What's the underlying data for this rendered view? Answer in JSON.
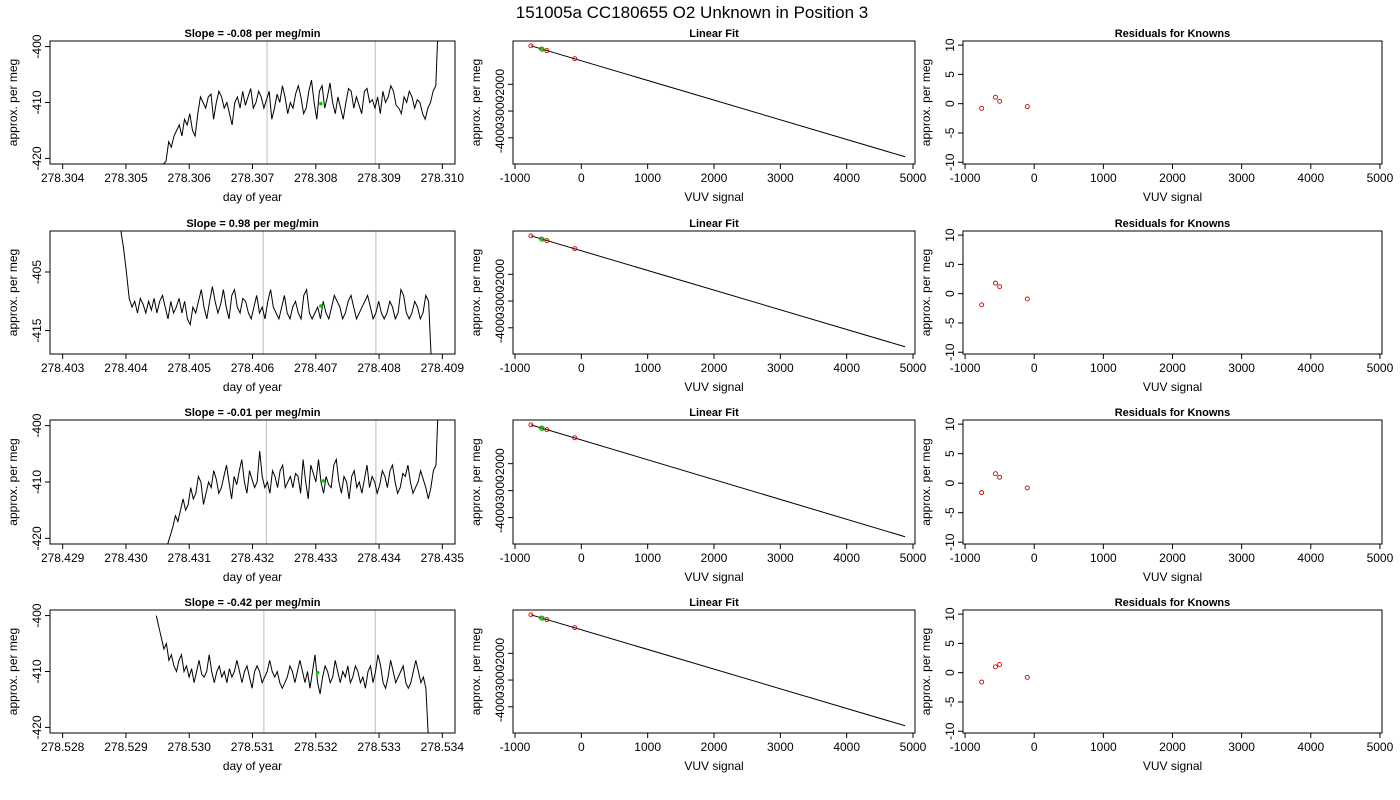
{
  "figure_title": "151005a     CC180655   O2 Unknown in Position  3",
  "colors": {
    "trace": "#000000",
    "vline": "#bdbdbd",
    "highlight": "#00cc00",
    "points": "#cc0000",
    "fit_line": "#000000"
  },
  "chart_data": [
    {
      "type": "line",
      "title": "Slope =  -0.08  per meg/min",
      "xlabel": "day of year",
      "ylabel": "approx. per meg",
      "x_ticks": [
        "278.304",
        "278.305",
        "278.306",
        "278.307",
        "278.308",
        "278.309",
        "278.310"
      ],
      "y_ticks": [
        "-400",
        "-410",
        "-420"
      ],
      "xlim": [
        278.3038,
        278.3102
      ],
      "ylim": [
        -421,
        -399
      ],
      "vlines": [
        278.30723,
        278.30894
      ],
      "highlight": {
        "x": 278.30808,
        "y": -410.2
      },
      "series": [
        {
          "start": 278.30555,
          "end": 278.30998,
          "points": [
            -424,
            -421,
            -420.5,
            -417,
            -418,
            -416,
            -415,
            -414,
            -416,
            -413,
            -414,
            -412,
            -415,
            -416,
            -412,
            -409,
            -410,
            -411,
            -409,
            -408.5,
            -413,
            -410,
            -408,
            -409,
            -411,
            -410,
            -412,
            -414,
            -410,
            -409,
            -411,
            -408,
            -410.5,
            -409,
            -407.5,
            -411,
            -410,
            -408,
            -409,
            -411,
            -409.5,
            -408,
            -413,
            -411,
            -408.5,
            -410,
            -407,
            -409,
            -412,
            -410,
            -411,
            -408.5,
            -407,
            -409,
            -412,
            -411,
            -408,
            -406,
            -410,
            -413,
            -408,
            -407,
            -411,
            -409,
            -406.5,
            -410,
            -412,
            -409,
            -411,
            -413,
            -410,
            -407.5,
            -408,
            -411,
            -409,
            -410.5,
            -412,
            -408,
            -407.5,
            -410,
            -409.5,
            -411,
            -409,
            -412,
            -408,
            -410,
            -409,
            -407,
            -408,
            -410.5,
            -411,
            -412,
            -409,
            -410,
            -408,
            -409,
            -411,
            -409.5,
            -410,
            -412,
            -413,
            -411,
            -410,
            -408,
            -407,
            -395,
            -380
          ]
        }
      ]
    },
    {
      "type": "scatter",
      "title": "Linear Fit",
      "xlabel": "VUV signal",
      "ylabel": "approx. per meg",
      "x_ticks": [
        "-1000",
        "0",
        "1000",
        "2000",
        "3000",
        "4000",
        "5000"
      ],
      "y_ticks": [
        "-2000",
        "-3000",
        "-4000"
      ],
      "xlim": [
        -1030,
        5030
      ],
      "ylim": [
        -4980,
        -380
      ],
      "fit_line": {
        "x": [
          -760,
          4880
        ],
        "y": [
          -560,
          -4710
        ]
      },
      "points": {
        "x": [
          -760,
          -600,
          -520,
          -100
        ],
        "y": [
          -560,
          -680,
          -740,
          -1040
        ]
      },
      "highlight": {
        "x": -590,
        "y": -690
      }
    },
    {
      "type": "scatter",
      "title": "Residuals for Knowns",
      "xlabel": "VUV signal",
      "ylabel": "approx. per meg",
      "x_ticks": [
        "-1000",
        "0",
        "1000",
        "2000",
        "3000",
        "4000",
        "5000"
      ],
      "y_ticks": [
        "10",
        "5",
        "0",
        "-5",
        "-10"
      ],
      "xlim": [
        -1030,
        5030
      ],
      "ylim": [
        -10.3,
        10.7
      ],
      "points": {
        "x": [
          -760,
          -560,
          -500,
          -100
        ],
        "y": [
          -0.8,
          1.1,
          0.4,
          -0.5
        ]
      }
    },
    {
      "type": "line",
      "title": "Slope =  0.98  per meg/min",
      "xlabel": "day of year",
      "ylabel": "approx. per meg",
      "x_ticks": [
        "278.403",
        "278.404",
        "278.405",
        "278.406",
        "278.407",
        "278.408",
        "278.409"
      ],
      "y_ticks": [
        "-405",
        "-415"
      ],
      "xlim": [
        278.4028,
        278.4092
      ],
      "ylim": [
        -419,
        -398
      ],
      "vlines": [
        278.40617,
        278.40795
      ],
      "highlight": {
        "x": 278.40708,
        "y": -410.8
      },
      "series": [
        {
          "start": 278.40392,
          "end": 278.40887,
          "points": [
            -398,
            -401,
            -405,
            -409.5,
            -411,
            -410,
            -412,
            -409.5,
            -410.5,
            -412,
            -410,
            -411.5,
            -409.5,
            -412,
            -410,
            -409,
            -411,
            -413,
            -410,
            -412,
            -411,
            -409.5,
            -412,
            -410,
            -413,
            -414,
            -411,
            -412,
            -410,
            -408,
            -411,
            -413,
            -410,
            -407.5,
            -410,
            -412,
            -410.5,
            -408,
            -411,
            -413,
            -409,
            -408,
            -411,
            -412,
            -409.5,
            -410,
            -412,
            -413,
            -411,
            -409,
            -412,
            -411,
            -413,
            -410,
            -408,
            -411,
            -412,
            -413,
            -411,
            -409,
            -412,
            -413,
            -411,
            -410,
            -412,
            -413,
            -409,
            -408,
            -412,
            -413,
            -412,
            -411,
            -413,
            -410,
            -412,
            -413,
            -411,
            -409,
            -410,
            -411,
            -413,
            -412,
            -410,
            -409,
            -411,
            -413,
            -412,
            -411,
            -410,
            -409,
            -411,
            -413,
            -412,
            -410,
            -412,
            -413,
            -412,
            -410,
            -411,
            -413,
            -412,
            -408,
            -409,
            -412,
            -413,
            -412,
            -410,
            -411,
            -413,
            -412,
            -409,
            -410,
            -420,
            -425
          ]
        }
      ]
    },
    {
      "type": "scatter",
      "title": "Linear Fit",
      "xlabel": "VUV signal",
      "ylabel": "approx. per meg",
      "x_ticks": [
        "-1000",
        "0",
        "1000",
        "2000",
        "3000",
        "4000",
        "5000"
      ],
      "y_ticks": [
        "-2000",
        "-3000",
        "-4000"
      ],
      "xlim": [
        -1030,
        5030
      ],
      "ylim": [
        -4980,
        -380
      ],
      "fit_line": {
        "x": [
          -760,
          4880
        ],
        "y": [
          -560,
          -4710
        ]
      },
      "points": {
        "x": [
          -760,
          -600,
          -520,
          -100
        ],
        "y": [
          -560,
          -680,
          -740,
          -1040
        ]
      },
      "highlight": {
        "x": -590,
        "y": -690
      }
    },
    {
      "type": "scatter",
      "title": "Residuals for Knowns",
      "xlabel": "VUV signal",
      "ylabel": "approx. per meg",
      "x_ticks": [
        "-1000",
        "0",
        "1000",
        "2000",
        "3000",
        "4000",
        "5000"
      ],
      "y_ticks": [
        "10",
        "5",
        "0",
        "-5",
        "-10"
      ],
      "xlim": [
        -1030,
        5030
      ],
      "ylim": [
        -10.3,
        10.7
      ],
      "points": {
        "x": [
          -760,
          -560,
          -500,
          -100
        ],
        "y": [
          -1.9,
          1.8,
          1.2,
          -0.9
        ]
      }
    },
    {
      "type": "line",
      "title": "Slope =  -0.01  per meg/min",
      "xlabel": "day of year",
      "ylabel": "approx. per meg",
      "x_ticks": [
        "278.429",
        "278.430",
        "278.431",
        "278.432",
        "278.433",
        "278.434",
        "278.435"
      ],
      "y_ticks": [
        "-400",
        "-410",
        "-420"
      ],
      "xlim": [
        278.4288,
        278.4352
      ],
      "ylim": [
        -421,
        -399
      ],
      "vlines": [
        278.43222,
        278.43395
      ],
      "highlight": {
        "x": 278.43312,
        "y": -409.8
      },
      "series": [
        {
          "start": 278.43062,
          "end": 278.43498,
          "points": [
            -425,
            -421,
            -419.5,
            -418,
            -416,
            -417,
            -415,
            -413,
            -415,
            -414,
            -411,
            -413,
            -412,
            -409,
            -410,
            -414,
            -412,
            -410,
            -411,
            -408,
            -409.5,
            -412,
            -411,
            -409,
            -407,
            -410,
            -413,
            -409,
            -410.5,
            -408,
            -406,
            -410,
            -412,
            -408,
            -409.5,
            -411,
            -410,
            -404.5,
            -409,
            -411,
            -410,
            -412,
            -408,
            -409,
            -411,
            -408,
            -407,
            -411,
            -410,
            -409,
            -411,
            -408.5,
            -409,
            -412,
            -406,
            -410,
            -413,
            -407,
            -408.5,
            -410,
            -406,
            -410,
            -412,
            -409,
            -410.5,
            -411,
            -407,
            -406,
            -410,
            -412,
            -409,
            -410,
            -413,
            -409,
            -408,
            -411,
            -410,
            -412,
            -409.5,
            -407,
            -411,
            -409,
            -410,
            -412,
            -410.5,
            -408,
            -409,
            -411,
            -408,
            -407,
            -410,
            -412,
            -411,
            -408.5,
            -409,
            -407,
            -410,
            -412,
            -411,
            -410,
            -408,
            -409.5,
            -411,
            -413,
            -411,
            -408,
            -407,
            -395,
            -380
          ]
        }
      ]
    },
    {
      "type": "scatter",
      "title": "Linear Fit",
      "xlabel": "VUV signal",
      "ylabel": "approx. per meg",
      "x_ticks": [
        "-1000",
        "0",
        "1000",
        "2000",
        "3000",
        "4000",
        "5000"
      ],
      "y_ticks": [
        "-2000",
        "-3000",
        "-4000"
      ],
      "xlim": [
        -1030,
        5030
      ],
      "ylim": [
        -4980,
        -380
      ],
      "fit_line": {
        "x": [
          -760,
          4880
        ],
        "y": [
          -560,
          -4710
        ]
      },
      "points": {
        "x": [
          -760,
          -600,
          -520,
          -100
        ],
        "y": [
          -560,
          -680,
          -740,
          -1040
        ]
      },
      "highlight": {
        "x": -590,
        "y": -690
      }
    },
    {
      "type": "scatter",
      "title": "Residuals for Knowns",
      "xlabel": "VUV signal",
      "ylabel": "approx. per meg",
      "x_ticks": [
        "-1000",
        "0",
        "1000",
        "2000",
        "3000",
        "4000",
        "5000"
      ],
      "y_ticks": [
        "10",
        "5",
        "0",
        "-5",
        "-10"
      ],
      "xlim": [
        -1030,
        5030
      ],
      "ylim": [
        -10.3,
        10.7
      ],
      "points": {
        "x": [
          -760,
          -560,
          -500,
          -100
        ],
        "y": [
          -1.6,
          1.6,
          1.0,
          -0.8
        ]
      }
    },
    {
      "type": "line",
      "title": "Slope =  -0.42  per meg/min",
      "xlabel": "day of year",
      "ylabel": "approx. per meg",
      "x_ticks": [
        "278.528",
        "278.529",
        "278.530",
        "278.531",
        "278.532",
        "278.533",
        "278.534"
      ],
      "y_ticks": [
        "-400",
        "-410",
        "-420"
      ],
      "xlim": [
        278.5278,
        278.5342
      ],
      "ylim": [
        -421,
        -399
      ],
      "vlines": [
        278.53118,
        278.53294
      ],
      "highlight": {
        "x": 278.53203,
        "y": -410.2
      },
      "series": [
        {
          "start": 278.52948,
          "end": 278.53382,
          "points": [
            -400,
            -402,
            -404,
            -406,
            -405,
            -408,
            -407,
            -409,
            -410,
            -408,
            -407,
            -410,
            -409,
            -411,
            -409.5,
            -412,
            -410,
            -408,
            -410.5,
            -411,
            -410,
            -407,
            -410,
            -412,
            -410,
            -409,
            -411,
            -410,
            -412,
            -409.5,
            -411,
            -410,
            -408,
            -410,
            -412,
            -410,
            -409,
            -411,
            -413,
            -410,
            -409,
            -410,
            -412,
            -411,
            -410,
            -408,
            -410,
            -411,
            -410,
            -412,
            -413,
            -412,
            -411,
            -409,
            -410,
            -412,
            -410,
            -408,
            -410,
            -412,
            -410,
            -413,
            -410,
            -407,
            -412,
            -414,
            -411,
            -409,
            -410,
            -412,
            -411,
            -408,
            -410,
            -412,
            -410,
            -411,
            -409,
            -412,
            -411,
            -409,
            -410,
            -412,
            -411,
            -413,
            -410,
            -409,
            -412,
            -410,
            -407,
            -409,
            -412,
            -413,
            -411,
            -408,
            -410,
            -412,
            -411,
            -410,
            -409,
            -412,
            -413,
            -412,
            -410,
            -408,
            -410,
            -412,
            -411,
            -413,
            -422,
            -428
          ]
        }
      ]
    },
    {
      "type": "scatter",
      "title": "Linear Fit",
      "xlabel": "VUV signal",
      "ylabel": "approx. per meg",
      "x_ticks": [
        "-1000",
        "0",
        "1000",
        "2000",
        "3000",
        "4000",
        "5000"
      ],
      "y_ticks": [
        "-2000",
        "-3000",
        "-4000"
      ],
      "xlim": [
        -1030,
        5030
      ],
      "ylim": [
        -4980,
        -380
      ],
      "fit_line": {
        "x": [
          -760,
          4880
        ],
        "y": [
          -560,
          -4710
        ]
      },
      "points": {
        "x": [
          -760,
          -600,
          -520,
          -100
        ],
        "y": [
          -560,
          -680,
          -740,
          -1040
        ]
      },
      "highlight": {
        "x": -590,
        "y": -690
      }
    },
    {
      "type": "scatter",
      "title": "Residuals for Knowns",
      "xlabel": "VUV signal",
      "ylabel": "approx. per meg",
      "x_ticks": [
        "-1000",
        "0",
        "1000",
        "2000",
        "3000",
        "4000",
        "5000"
      ],
      "y_ticks": [
        "10",
        "5",
        "0",
        "-5",
        "-10"
      ],
      "xlim": [
        -1030,
        5030
      ],
      "ylim": [
        -10.3,
        10.7
      ],
      "points": {
        "x": [
          -760,
          -560,
          -500,
          -100
        ],
        "y": [
          -1.6,
          1.0,
          1.4,
          -0.8
        ]
      }
    }
  ]
}
